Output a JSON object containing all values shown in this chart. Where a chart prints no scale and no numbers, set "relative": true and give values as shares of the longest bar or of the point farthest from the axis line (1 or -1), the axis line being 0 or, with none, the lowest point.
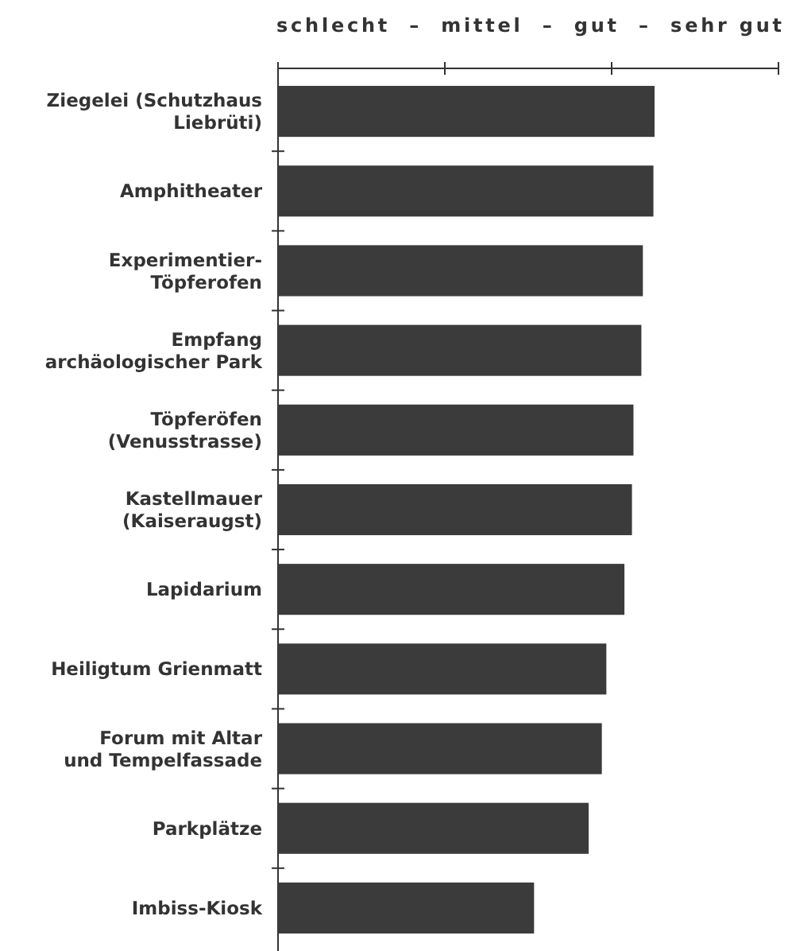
{
  "chart_data": {
    "type": "bar",
    "orientation": "horizontal",
    "relative": true,
    "categories": [
      "Ziegelei (Schutzhaus\nLiebrüti)",
      "Amphitheater",
      "Experimentier-\nTöpferofen",
      "Empfang\narchäologischer Park",
      "Töpferöfen\n(Venusstrasse)",
      "Kastellmauer\n(Kaiseraugst)",
      "Lapidarium",
      "Heiligtum Grienmatt",
      "Forum mit Altar\nund Tempelfassade",
      "Parkplätze",
      "Imbiss-Kiosk"
    ],
    "values": [
      1,
      0.997,
      0.969,
      0.965,
      0.944,
      0.94,
      0.92,
      0.872,
      0.86,
      0.825,
      0.68
    ],
    "color": "#3b3b3b",
    "annotations": [
      "schlecht  –  mittel  –  gut  –  sehr gut"
    ]
  }
}
